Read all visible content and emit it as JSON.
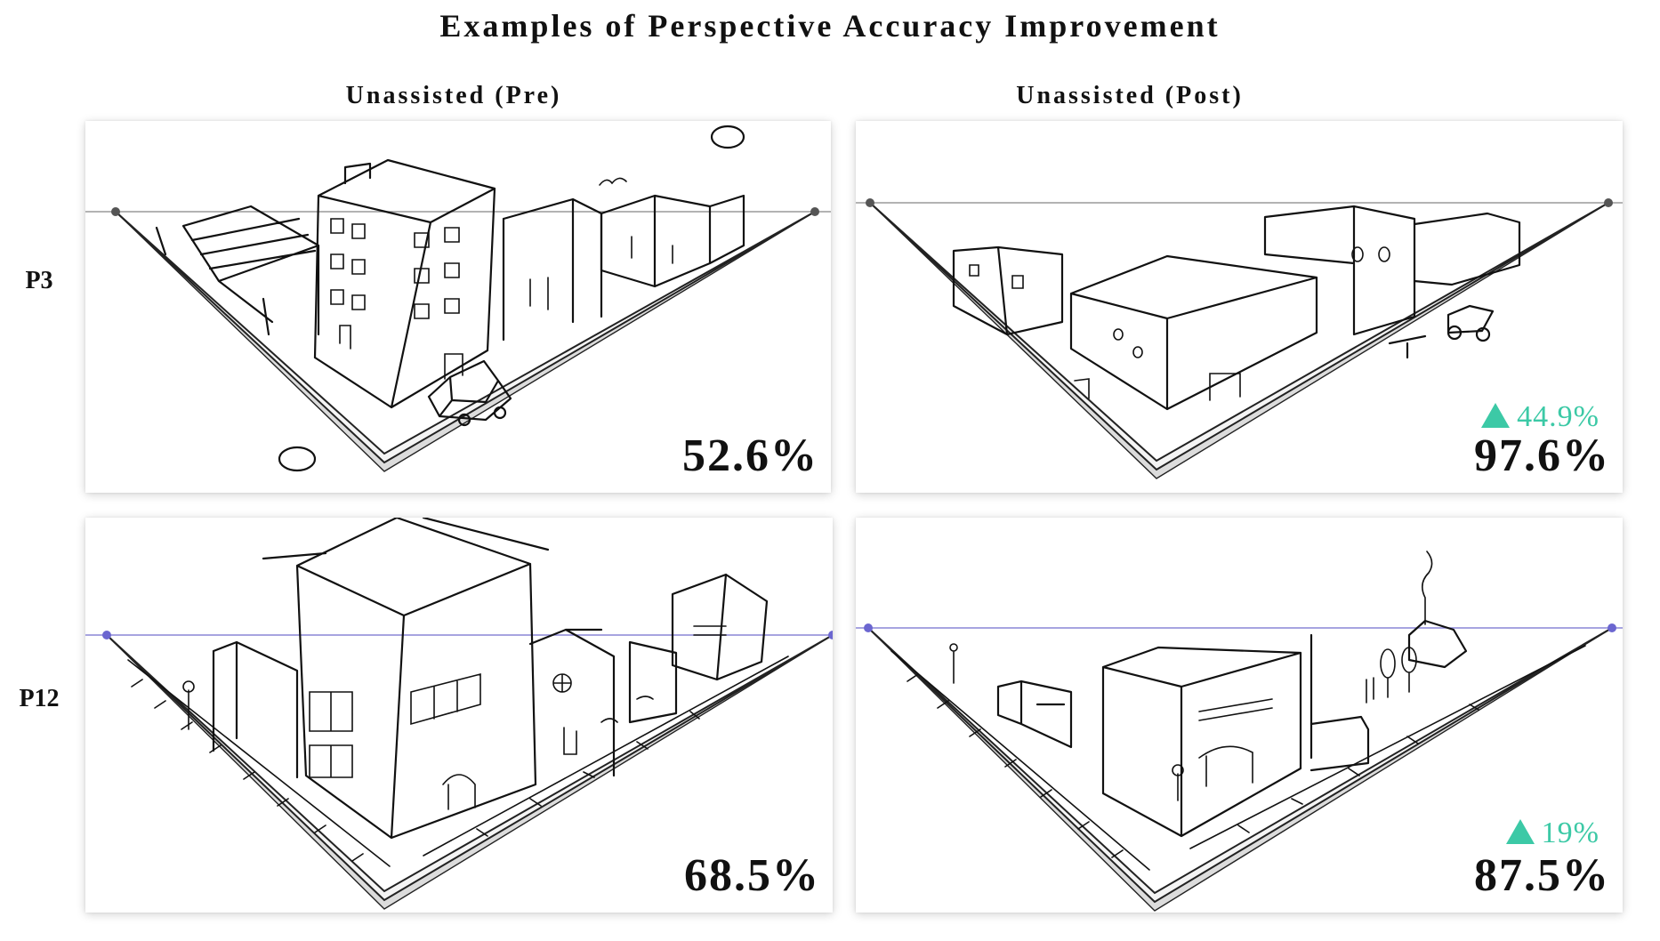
{
  "title": "Examples of Perspective Accuracy Improvement",
  "columns": [
    "Unassisted (Pre)",
    "Unassisted (Post)"
  ],
  "rows": [
    {
      "participant": "P3",
      "horizon_color": "#9a9a9a",
      "pre": {
        "score": "52.6%"
      },
      "post": {
        "score": "97.6%",
        "improvement": "44.9%"
      }
    },
    {
      "participant": "P12",
      "horizon_color": "#8a86d6",
      "pre": {
        "score": "68.5%"
      },
      "post": {
        "score": "87.5%",
        "improvement": "19%"
      }
    }
  ],
  "improvement_color": "#3cc9a6",
  "icons": {
    "improvement": "up-triangle-icon"
  }
}
